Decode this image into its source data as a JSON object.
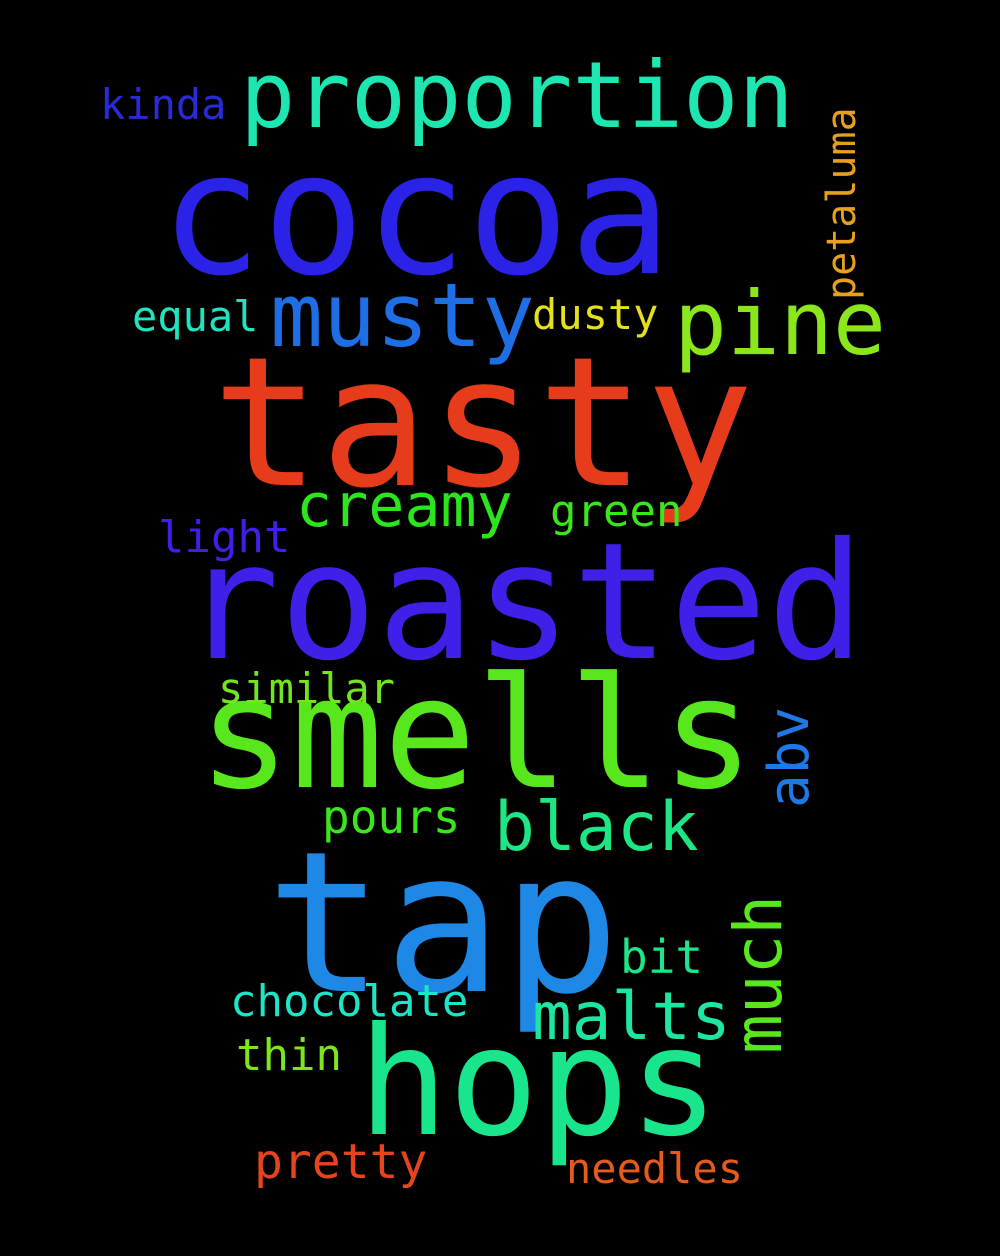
{
  "background": "#000000",
  "words": {
    "cocoa": {
      "text": "cocoa",
      "color": "#2A22E6"
    },
    "tasty": {
      "text": "tasty",
      "color": "#E63C1C"
    },
    "roasted": {
      "text": "roasted",
      "color": "#3F20E8"
    },
    "smells": {
      "text": "smells",
      "color": "#58E61C"
    },
    "tap": {
      "text": "tap",
      "color": "#1E88E6"
    },
    "hops": {
      "text": "hops",
      "color": "#19E68C"
    },
    "proportion": {
      "text": "proportion",
      "color": "#1DE6B0"
    },
    "musty": {
      "text": "musty",
      "color": "#1E6FE6"
    },
    "pine": {
      "text": "pine",
      "color": "#8CE61C"
    },
    "creamy": {
      "text": "creamy",
      "color": "#2BE61C"
    },
    "black": {
      "text": "black",
      "color": "#1DE684"
    },
    "malts": {
      "text": "malts",
      "color": "#1DE6A0"
    },
    "chocolate": {
      "text": "chocolate",
      "color": "#1DE6C8"
    },
    "pretty": {
      "text": "pretty",
      "color": "#E6441C"
    },
    "needles": {
      "text": "needles",
      "color": "#E65A1C"
    },
    "pours": {
      "text": "pours",
      "color": "#3CE61C"
    },
    "thin": {
      "text": "thin",
      "color": "#7CE61C"
    },
    "similar": {
      "text": "similar",
      "color": "#72E61C"
    },
    "bit": {
      "text": "bit",
      "color": "#1DE68A"
    },
    "green": {
      "text": "green",
      "color": "#3AE61C"
    },
    "light": {
      "text": "light",
      "color": "#3F20E8"
    },
    "equal": {
      "text": "equal",
      "color": "#1DE6BE"
    },
    "dusty": {
      "text": "dusty",
      "color": "#E6E01C"
    },
    "kinda": {
      "text": "kinda",
      "color": "#2A2AD8"
    },
    "petaluma": {
      "text": "petaluma",
      "color": "#E6A01C"
    },
    "abv": {
      "text": "abv",
      "color": "#1E78E6"
    },
    "much": {
      "text": "much",
      "color": "#58E61C"
    }
  }
}
